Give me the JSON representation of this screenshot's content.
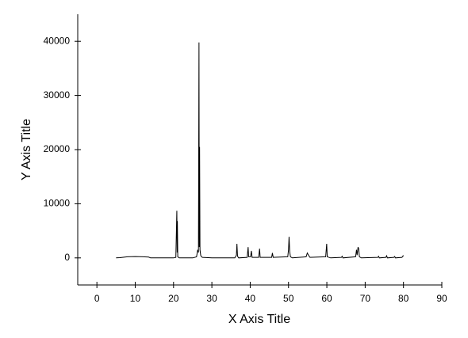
{
  "chart_data": {
    "type": "line",
    "x_label": "X Axis Title",
    "y_label": "Y Axis Title",
    "xlim": [
      -5,
      90
    ],
    "xticks": [
      0,
      10,
      20,
      30,
      40,
      50,
      60,
      70,
      80,
      90
    ],
    "ylim": [
      -5000,
      45000
    ],
    "yticks": [
      0,
      10000,
      20000,
      30000,
      40000
    ],
    "grid": false,
    "series": [
      {
        "color": "#000000",
        "x": [
          5.0,
          6,
          8,
          10,
          12,
          13.5,
          14,
          16,
          18,
          20,
          20.6,
          20.86,
          20.95,
          21.0,
          21.1,
          21.5,
          23,
          25,
          26.0,
          26.3,
          26.5,
          26.64,
          26.72,
          26.8,
          26.9,
          27.1,
          27.5,
          30,
          33,
          36.0,
          36.4,
          36.54,
          36.7,
          37,
          39.2,
          39.46,
          39.6,
          40.1,
          40.3,
          40.5,
          42.2,
          42.45,
          42.6,
          45.6,
          45.8,
          46,
          49.8,
          50.0,
          50.14,
          50.3,
          50.5,
          51,
          54.6,
          54.9,
          55.3,
          55.6,
          59.7,
          59.96,
          60.1,
          61,
          63.8,
          64,
          64.2,
          67.5,
          67.74,
          67.9,
          68.14,
          68.3,
          68.5,
          69,
          73.3,
          73.5,
          73.7,
          75.4,
          75.6,
          75.8,
          77.5,
          77.7,
          77.9,
          79.6,
          79.9,
          80
        ],
        "values": [
          0,
          50,
          200,
          250,
          200,
          150,
          0,
          0,
          0,
          0,
          100,
          8700,
          1000,
          6800,
          200,
          0,
          0,
          0,
          200,
          1500,
          1000,
          39800,
          2000,
          20500,
          1500,
          400,
          100,
          0,
          0,
          0,
          500,
          2600,
          300,
          0,
          100,
          2000,
          200,
          200,
          1300,
          100,
          100,
          1700,
          100,
          100,
          900,
          100,
          200,
          1500,
          3900,
          1200,
          200,
          0,
          200,
          900,
          400,
          100,
          200,
          2600,
          200,
          0,
          100,
          300,
          0,
          200,
          1500,
          500,
          2000,
          1700,
          200,
          0,
          100,
          300,
          0,
          100,
          400,
          0,
          100,
          250,
          0,
          100,
          400,
          300
        ]
      }
    ]
  }
}
